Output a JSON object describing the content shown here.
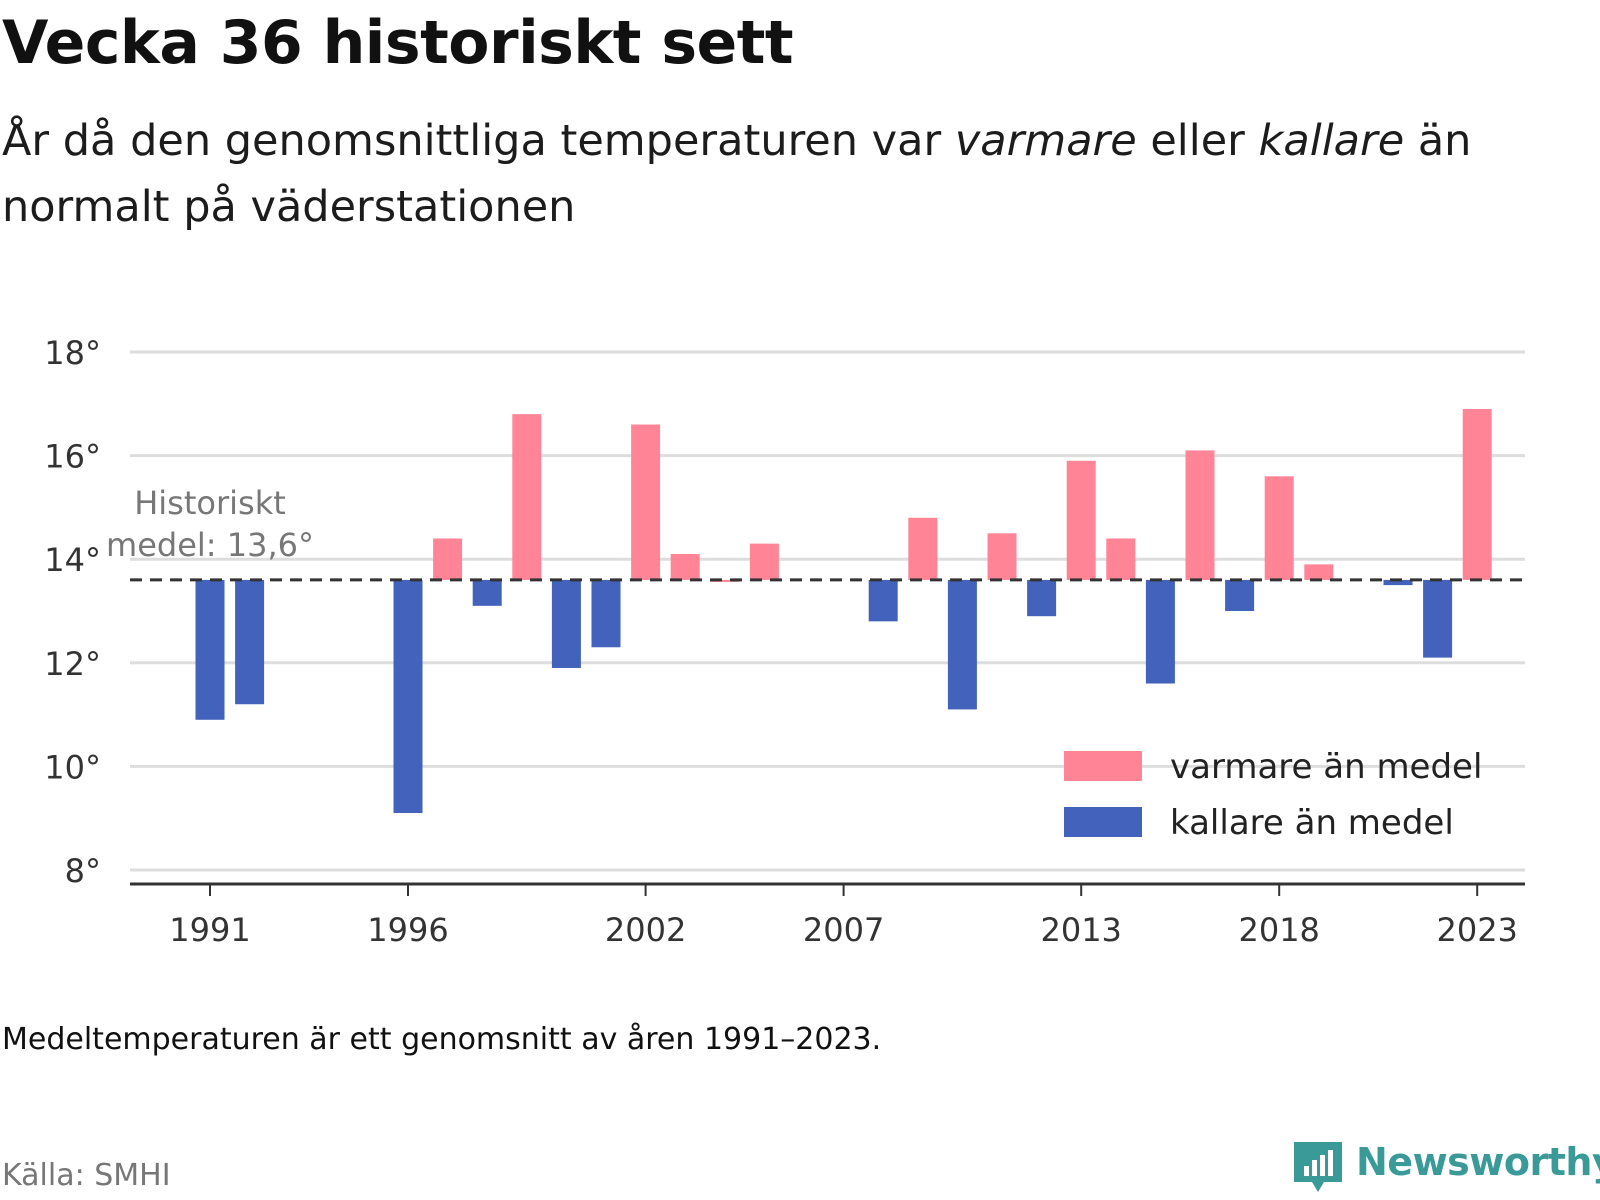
{
  "header": {
    "title": "Vecka 36 historiskt sett",
    "subtitle_part1": "År då den genomsnittliga temperaturen var ",
    "subtitle_warm": "varmare",
    "subtitle_part2": " eller ",
    "subtitle_cold": "kallare",
    "subtitle_part3": " än normalt på väderstationen"
  },
  "chart_data": {
    "type": "bar",
    "x": [
      1991,
      1992,
      1993,
      1994,
      1995,
      1996,
      1997,
      1998,
      1999,
      2000,
      2001,
      2002,
      2003,
      2004,
      2005,
      2006,
      2007,
      2008,
      2009,
      2010,
      2011,
      2012,
      2013,
      2014,
      2015,
      2016,
      2017,
      2018,
      2019,
      2020,
      2021,
      2022,
      2023
    ],
    "values": [
      10.9,
      11.2,
      null,
      null,
      null,
      9.1,
      14.4,
      13.1,
      16.8,
      11.9,
      12.3,
      16.6,
      14.1,
      13.6,
      14.3,
      null,
      null,
      12.8,
      14.8,
      11.1,
      14.5,
      12.9,
      15.9,
      14.4,
      11.6,
      16.1,
      13.0,
      15.6,
      13.9,
      null,
      13.5,
      12.1,
      16.9
    ],
    "baseline": 13.6,
    "baseline_label_line1": "Historiskt",
    "baseline_label_line2": "medel: 13,6°",
    "ylim": [
      8,
      18
    ],
    "y_ticks": [
      8,
      10,
      12,
      14,
      16,
      18
    ],
    "y_tick_labels": [
      "8°",
      "10°",
      "12°",
      "14°",
      "16°",
      "18°"
    ],
    "x_ticks": [
      1991,
      1996,
      2002,
      2007,
      2013,
      2018,
      2023
    ],
    "x_tick_labels": [
      "1991",
      "1996",
      "2002",
      "2007",
      "2013",
      "2018",
      "2023"
    ],
    "xlabel": "",
    "ylabel": "",
    "grid": true,
    "legend_position": "bottom-right",
    "legend": [
      {
        "name": "varmare än medel",
        "color": "#ff8596"
      },
      {
        "name": "kallare än medel",
        "color": "#4262bb"
      }
    ],
    "colors": {
      "warm": "#ff8596",
      "cold": "#4262bb"
    }
  },
  "footer": {
    "note": "Medeltemperaturen är ett genomsnitt av åren 1991–2023.",
    "source": "Källa: SMHI",
    "brand": "Newsworthy",
    "brand_color": "#3a9a98"
  }
}
